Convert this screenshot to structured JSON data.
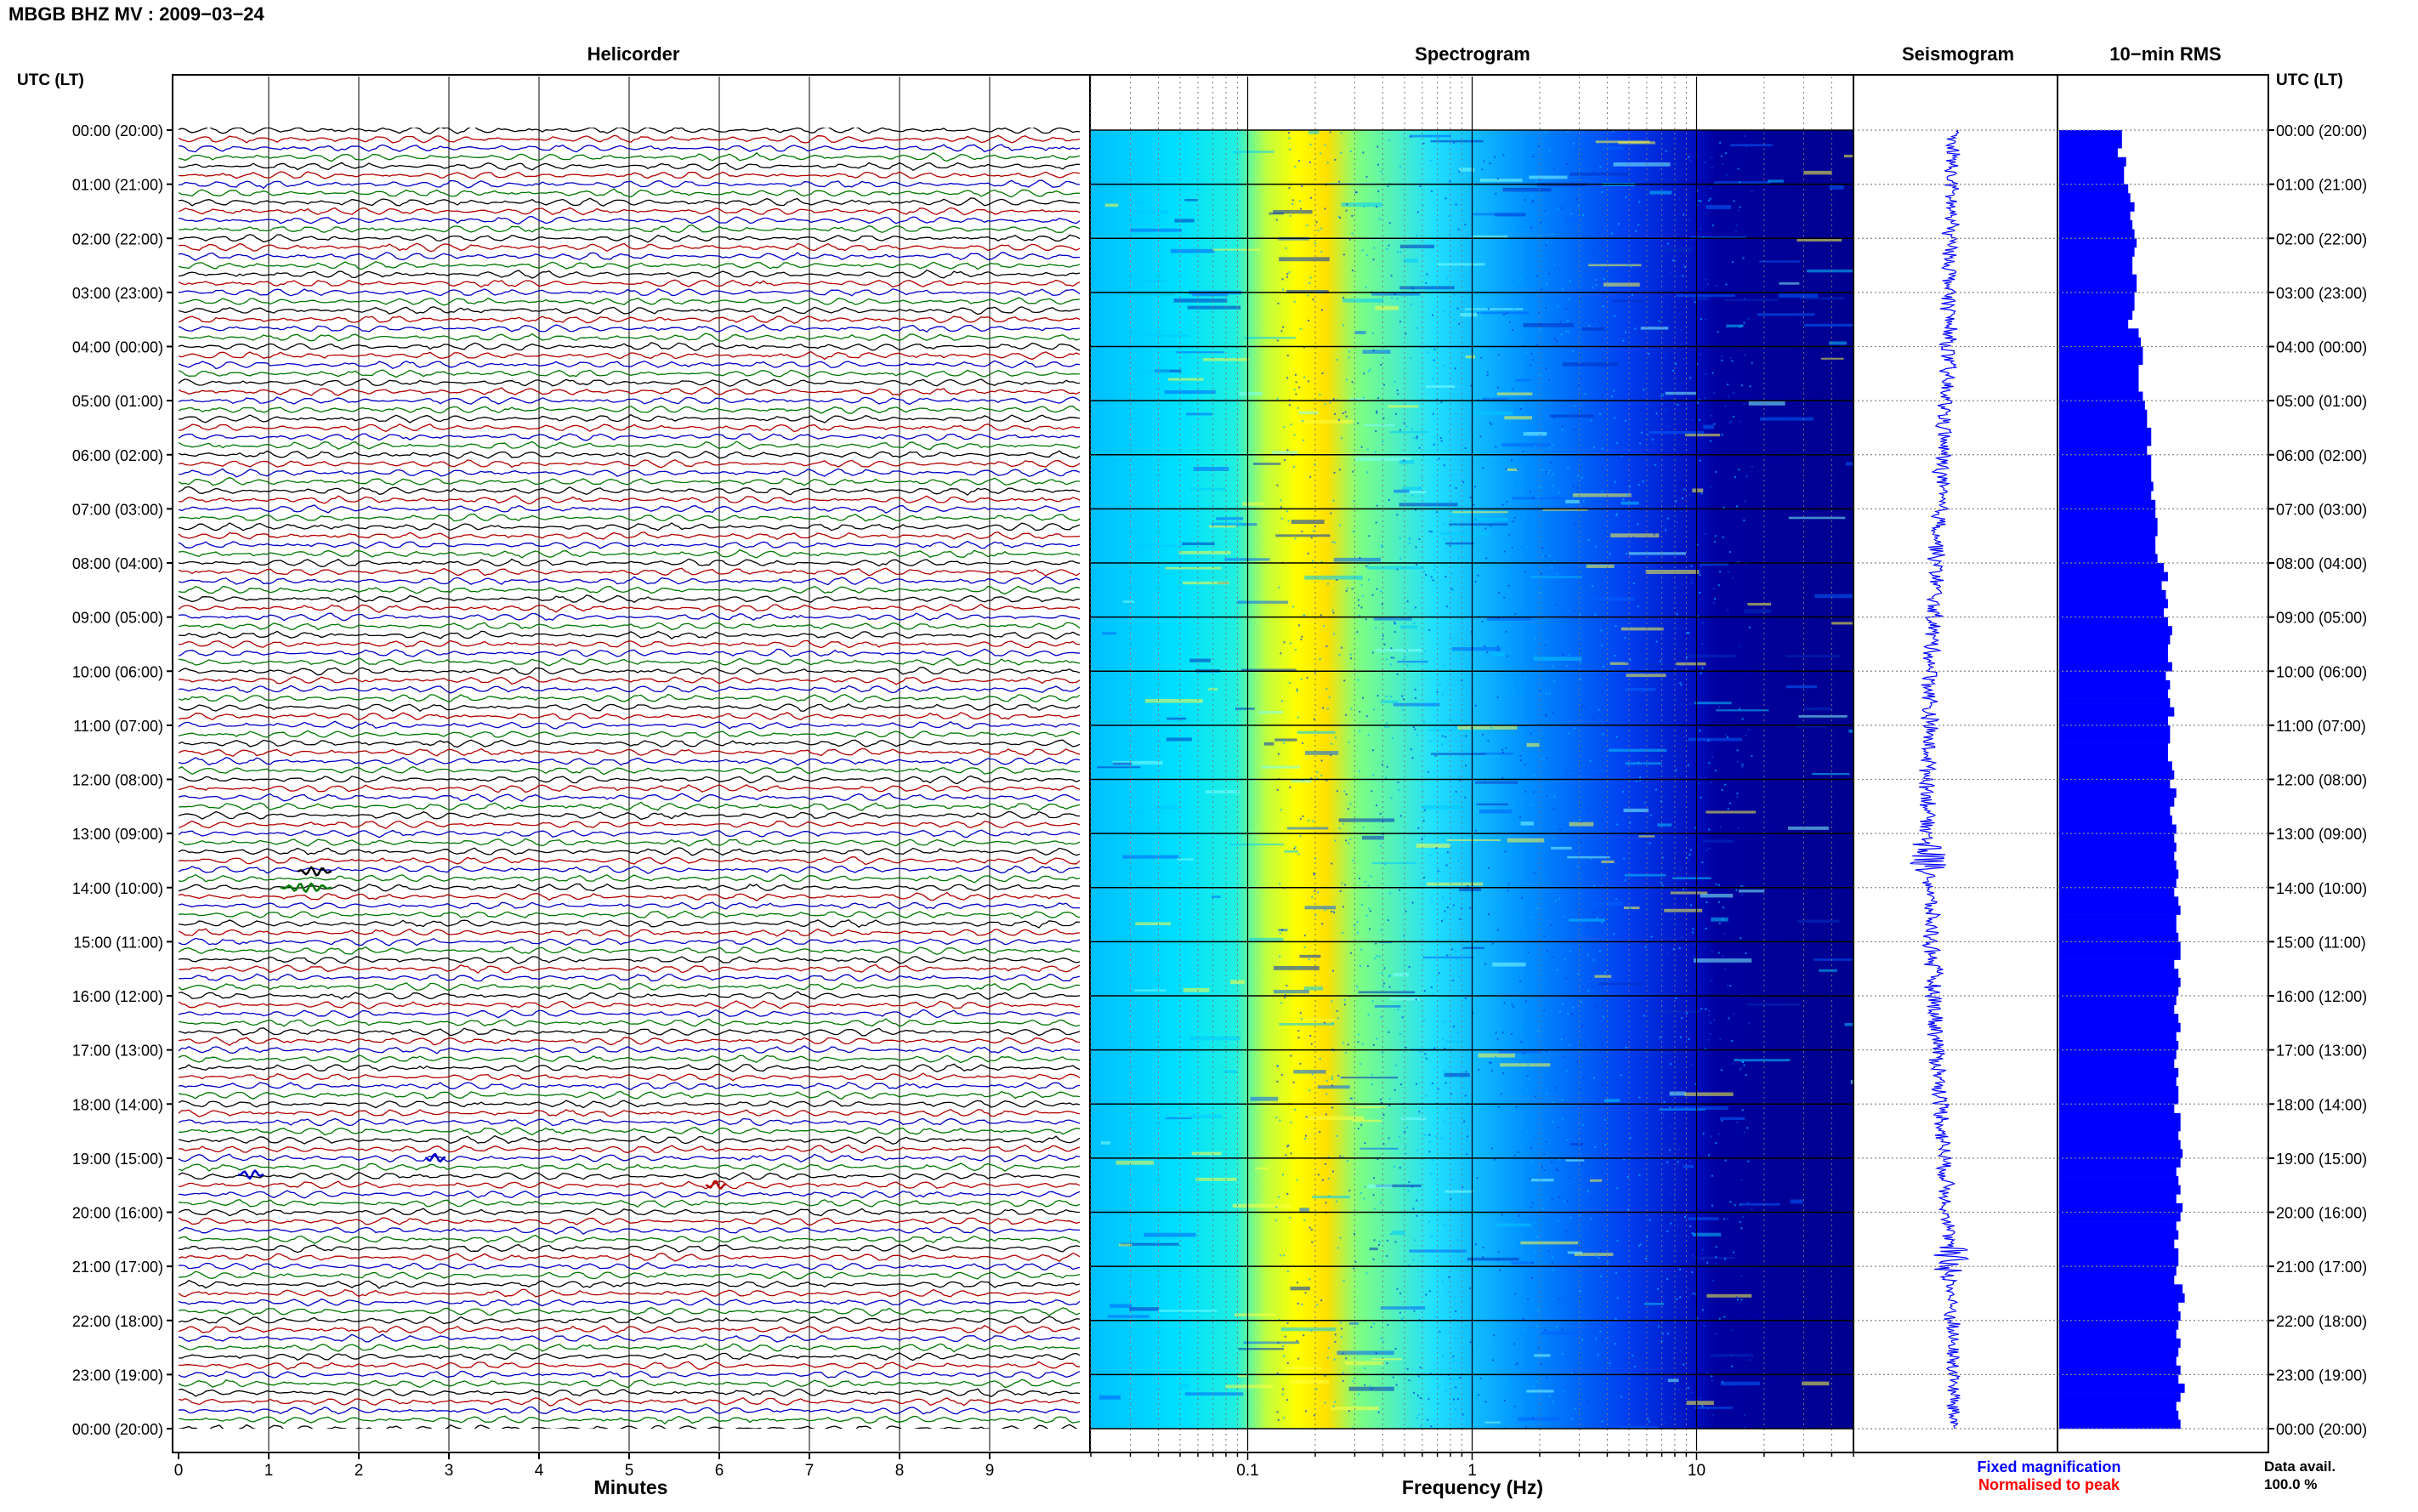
{
  "title": "MBGB BHZ MV : 2009−03−24",
  "time_axis_label": "UTC (LT)",
  "colors": {
    "trace_cycle": [
      "#000000",
      "#b40000",
      "#0000c8",
      "#007800"
    ],
    "seismogram": "#0000ff",
    "rms_bar": "#0000ff",
    "fixed_magnification": "#0000ff",
    "normalised_to_peak": "#ff0000",
    "spectrogram_colormap": [
      "#00008f",
      "#0000ff",
      "#00a0ff",
      "#00ffff",
      "#80ff80",
      "#ffff00",
      "#ff8000"
    ]
  },
  "time_labels": [
    "00:00 (20:00)",
    "01:00 (21:00)",
    "02:00 (22:00)",
    "03:00 (23:00)",
    "04:00 (00:00)",
    "05:00 (01:00)",
    "06:00 (02:00)",
    "07:00 (03:00)",
    "08:00 (04:00)",
    "09:00 (05:00)",
    "10:00 (06:00)",
    "11:00 (07:00)",
    "12:00 (08:00)",
    "13:00 (09:00)",
    "14:00 (10:00)",
    "15:00 (11:00)",
    "16:00 (12:00)",
    "17:00 (13:00)",
    "18:00 (14:00)",
    "19:00 (15:00)",
    "20:00 (16:00)",
    "21:00 (17:00)",
    "22:00 (18:00)",
    "23:00 (19:00)",
    "00:00 (20:00)"
  ],
  "panels": {
    "helicorder": {
      "title": "Helicorder",
      "xlabel": "Minutes"
    },
    "spectrogram": {
      "title": "Spectrogram",
      "xlabel": "Frequency (Hz)"
    },
    "seismogram": {
      "title": "Seismogram"
    },
    "rms": {
      "title": "10−min RMS"
    }
  },
  "footer": {
    "fixed_magnification": "Fixed magnification",
    "normalised_to_peak": "Normalised to peak",
    "data_avail_label": "Data avail.",
    "data_avail_value": "100.0 %"
  },
  "chart_data": [
    {
      "type": "line",
      "panel": "helicorder",
      "title": "Helicorder",
      "xlabel": "Minutes",
      "ylabel": "UTC (LT)",
      "x_ticks": [
        "0",
        "1",
        "2",
        "3",
        "4",
        "5",
        "6",
        "7",
        "8",
        "9"
      ],
      "xlim": [
        0,
        10
      ],
      "traces_per_hour": 6,
      "hours": 24,
      "trace_color_cycle": [
        "black",
        "red",
        "blue",
        "green"
      ],
      "grid": true
    },
    {
      "type": "heatmap",
      "panel": "spectrogram",
      "title": "Spectrogram",
      "xlabel": "Frequency (Hz)",
      "x_scale": "log",
      "xlim": [
        0.02,
        50
      ],
      "x_ticks": [
        "0.1",
        "1",
        "10"
      ],
      "peak_band_hz": [
        0.15,
        0.4
      ],
      "colormap": "jet",
      "grid": true
    },
    {
      "type": "line",
      "panel": "seismogram",
      "title": "Seismogram",
      "series": [
        {
          "name": "Fixed magnification",
          "color": "blue"
        }
      ]
    },
    {
      "type": "bar",
      "panel": "rms",
      "title": "10−min RMS",
      "orientation": "horizontal",
      "bar_interval_minutes": 10,
      "relative_values": [
        0.3,
        0.3,
        0.28,
        0.32,
        0.31,
        0.31,
        0.33,
        0.34,
        0.36,
        0.34,
        0.35,
        0.36,
        0.37,
        0.36,
        0.35,
        0.35,
        0.37,
        0.37,
        0.36,
        0.36,
        0.35,
        0.33,
        0.38,
        0.39,
        0.4,
        0.4,
        0.38,
        0.38,
        0.38,
        0.4,
        0.41,
        0.42,
        0.42,
        0.44,
        0.44,
        0.42,
        0.44,
        0.44,
        0.44,
        0.45,
        0.44,
        0.46,
        0.46,
        0.47,
        0.47,
        0.46,
        0.46,
        0.47,
        0.5,
        0.52,
        0.49,
        0.51,
        0.52,
        0.5,
        0.52,
        0.54,
        0.53,
        0.52,
        0.52,
        0.54,
        0.51,
        0.53,
        0.52,
        0.53,
        0.55,
        0.52,
        0.53,
        0.53,
        0.52,
        0.52,
        0.54,
        0.55,
        0.53,
        0.56,
        0.55,
        0.53,
        0.54,
        0.56,
        0.55,
        0.56,
        0.55,
        0.56,
        0.57,
        0.56,
        0.55,
        0.57,
        0.58,
        0.56,
        0.56,
        0.57,
        0.58,
        0.58,
        0.55,
        0.57,
        0.58,
        0.57,
        0.56,
        0.55,
        0.57,
        0.58,
        0.56,
        0.57,
        0.56,
        0.55,
        0.57,
        0.56,
        0.57,
        0.57,
        0.55,
        0.58,
        0.58,
        0.57,
        0.58,
        0.59,
        0.58,
        0.56,
        0.57,
        0.58,
        0.56,
        0.59,
        0.58,
        0.56,
        0.57,
        0.55,
        0.57,
        0.57,
        0.56,
        0.55,
        0.59,
        0.6,
        0.57,
        0.58,
        0.57,
        0.56,
        0.58,
        0.57,
        0.56,
        0.58,
        0.57,
        0.6,
        0.58,
        0.56,
        0.57,
        0.58
      ]
    }
  ]
}
